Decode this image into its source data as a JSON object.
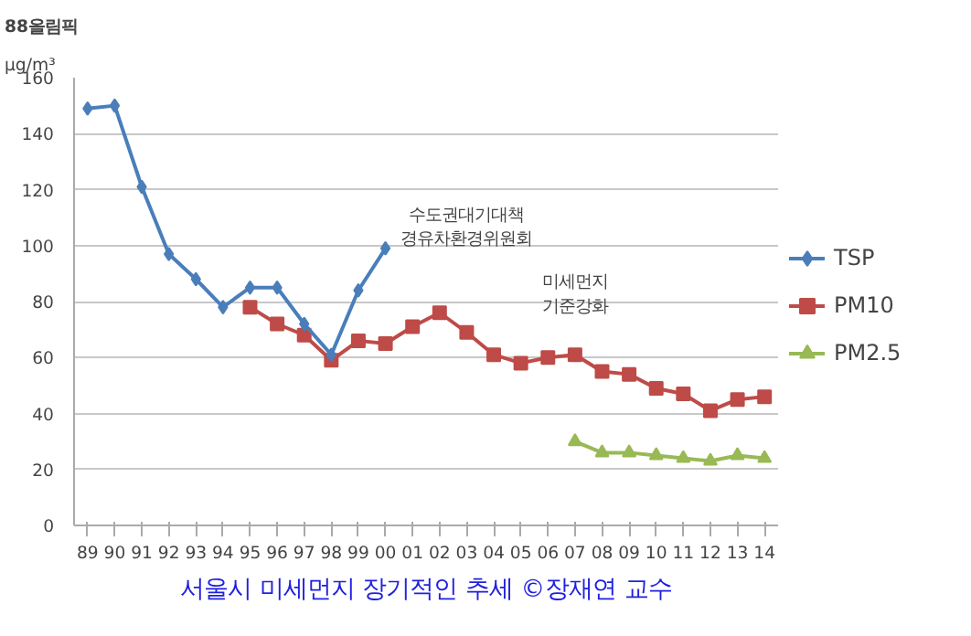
{
  "chart_data": {
    "type": "line",
    "ylabel": "μg/m³",
    "categories": [
      "89",
      "90",
      "91",
      "92",
      "93",
      "94",
      "95",
      "96",
      "97",
      "98",
      "99",
      "00",
      "01",
      "02",
      "03",
      "04",
      "05",
      "06",
      "07",
      "08",
      "09",
      "10",
      "11",
      "12",
      "13",
      "14"
    ],
    "series": [
      {
        "name": "TSP",
        "color": "#4a7ebb",
        "marker": "diamond",
        "values": [
          149,
          150,
          121,
          97,
          88,
          78,
          85,
          85,
          72,
          61,
          84,
          99,
          null,
          null,
          null,
          null,
          null,
          null,
          null,
          null,
          null,
          null,
          null,
          null,
          null,
          null
        ]
      },
      {
        "name": "PM10",
        "color": "#be4b48",
        "marker": "square",
        "values": [
          null,
          null,
          null,
          null,
          null,
          null,
          78,
          72,
          68,
          59,
          66,
          65,
          71,
          76,
          69,
          61,
          58,
          60,
          61,
          55,
          54,
          49,
          47,
          41,
          45,
          46
        ]
      },
      {
        "name": "PM2.5",
        "color": "#98b954",
        "marker": "triangle",
        "values": [
          null,
          null,
          null,
          null,
          null,
          null,
          null,
          null,
          null,
          null,
          null,
          null,
          null,
          null,
          null,
          null,
          null,
          null,
          30,
          26,
          26,
          25,
          24,
          23,
          25,
          24
        ]
      }
    ],
    "ylim": [
      0,
      160
    ],
    "yticks": [
      0,
      20,
      40,
      60,
      80,
      100,
      120,
      140,
      160
    ],
    "grid": "y",
    "legend": "right",
    "line_style": "solid",
    "annotations": [
      "88올림픽",
      "수도권대기대책\n경유차환경위원회",
      "미세먼지\n기준강화",
      "서울시 미세먼지 장기적인 추세 ©장재연 교수"
    ]
  }
}
